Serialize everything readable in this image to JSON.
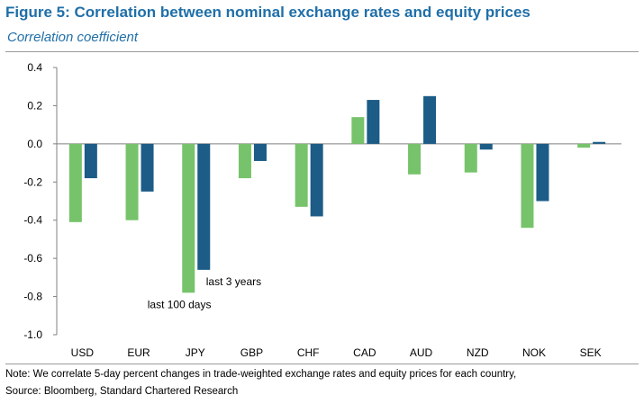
{
  "header": {
    "title": "Figure 5: Correlation between nominal exchange rates and equity prices",
    "subtitle": "Correlation coefficient"
  },
  "footer": {
    "note": "Note: We correlate 5-day percent changes in trade-weighted exchange rates and equity prices for each country,",
    "source": "Source: Bloomberg, Standard Chartered Research"
  },
  "chart_data": {
    "type": "bar",
    "title": "Figure 5: Correlation between nominal exchange rates and equity prices",
    "subtitle": "Correlation coefficient",
    "categories": [
      "USD",
      "EUR",
      "JPY",
      "GBP",
      "CHF",
      "CAD",
      "AUD",
      "NZD",
      "NOK",
      "SEK"
    ],
    "series": [
      {
        "name": "last 100 days",
        "color": "#77c36b",
        "values": [
          -0.41,
          -0.4,
          -0.78,
          -0.18,
          -0.33,
          0.14,
          -0.16,
          -0.15,
          -0.44,
          -0.02
        ]
      },
      {
        "name": "last 3 years",
        "color": "#1c5c87",
        "values": [
          -0.18,
          -0.25,
          -0.66,
          -0.09,
          -0.38,
          0.23,
          0.25,
          -0.03,
          -0.3,
          0.01
        ]
      }
    ],
    "yticks": [
      "0.4",
      "0.2",
      "0.0",
      "-0.2",
      "-0.4",
      "-0.6",
      "-0.8",
      "-1.0"
    ],
    "ylim": [
      -1.0,
      0.4
    ],
    "xlabel": "",
    "ylabel": "",
    "grid": false,
    "annotations": [
      "last 3 years",
      "last 100 days"
    ]
  }
}
